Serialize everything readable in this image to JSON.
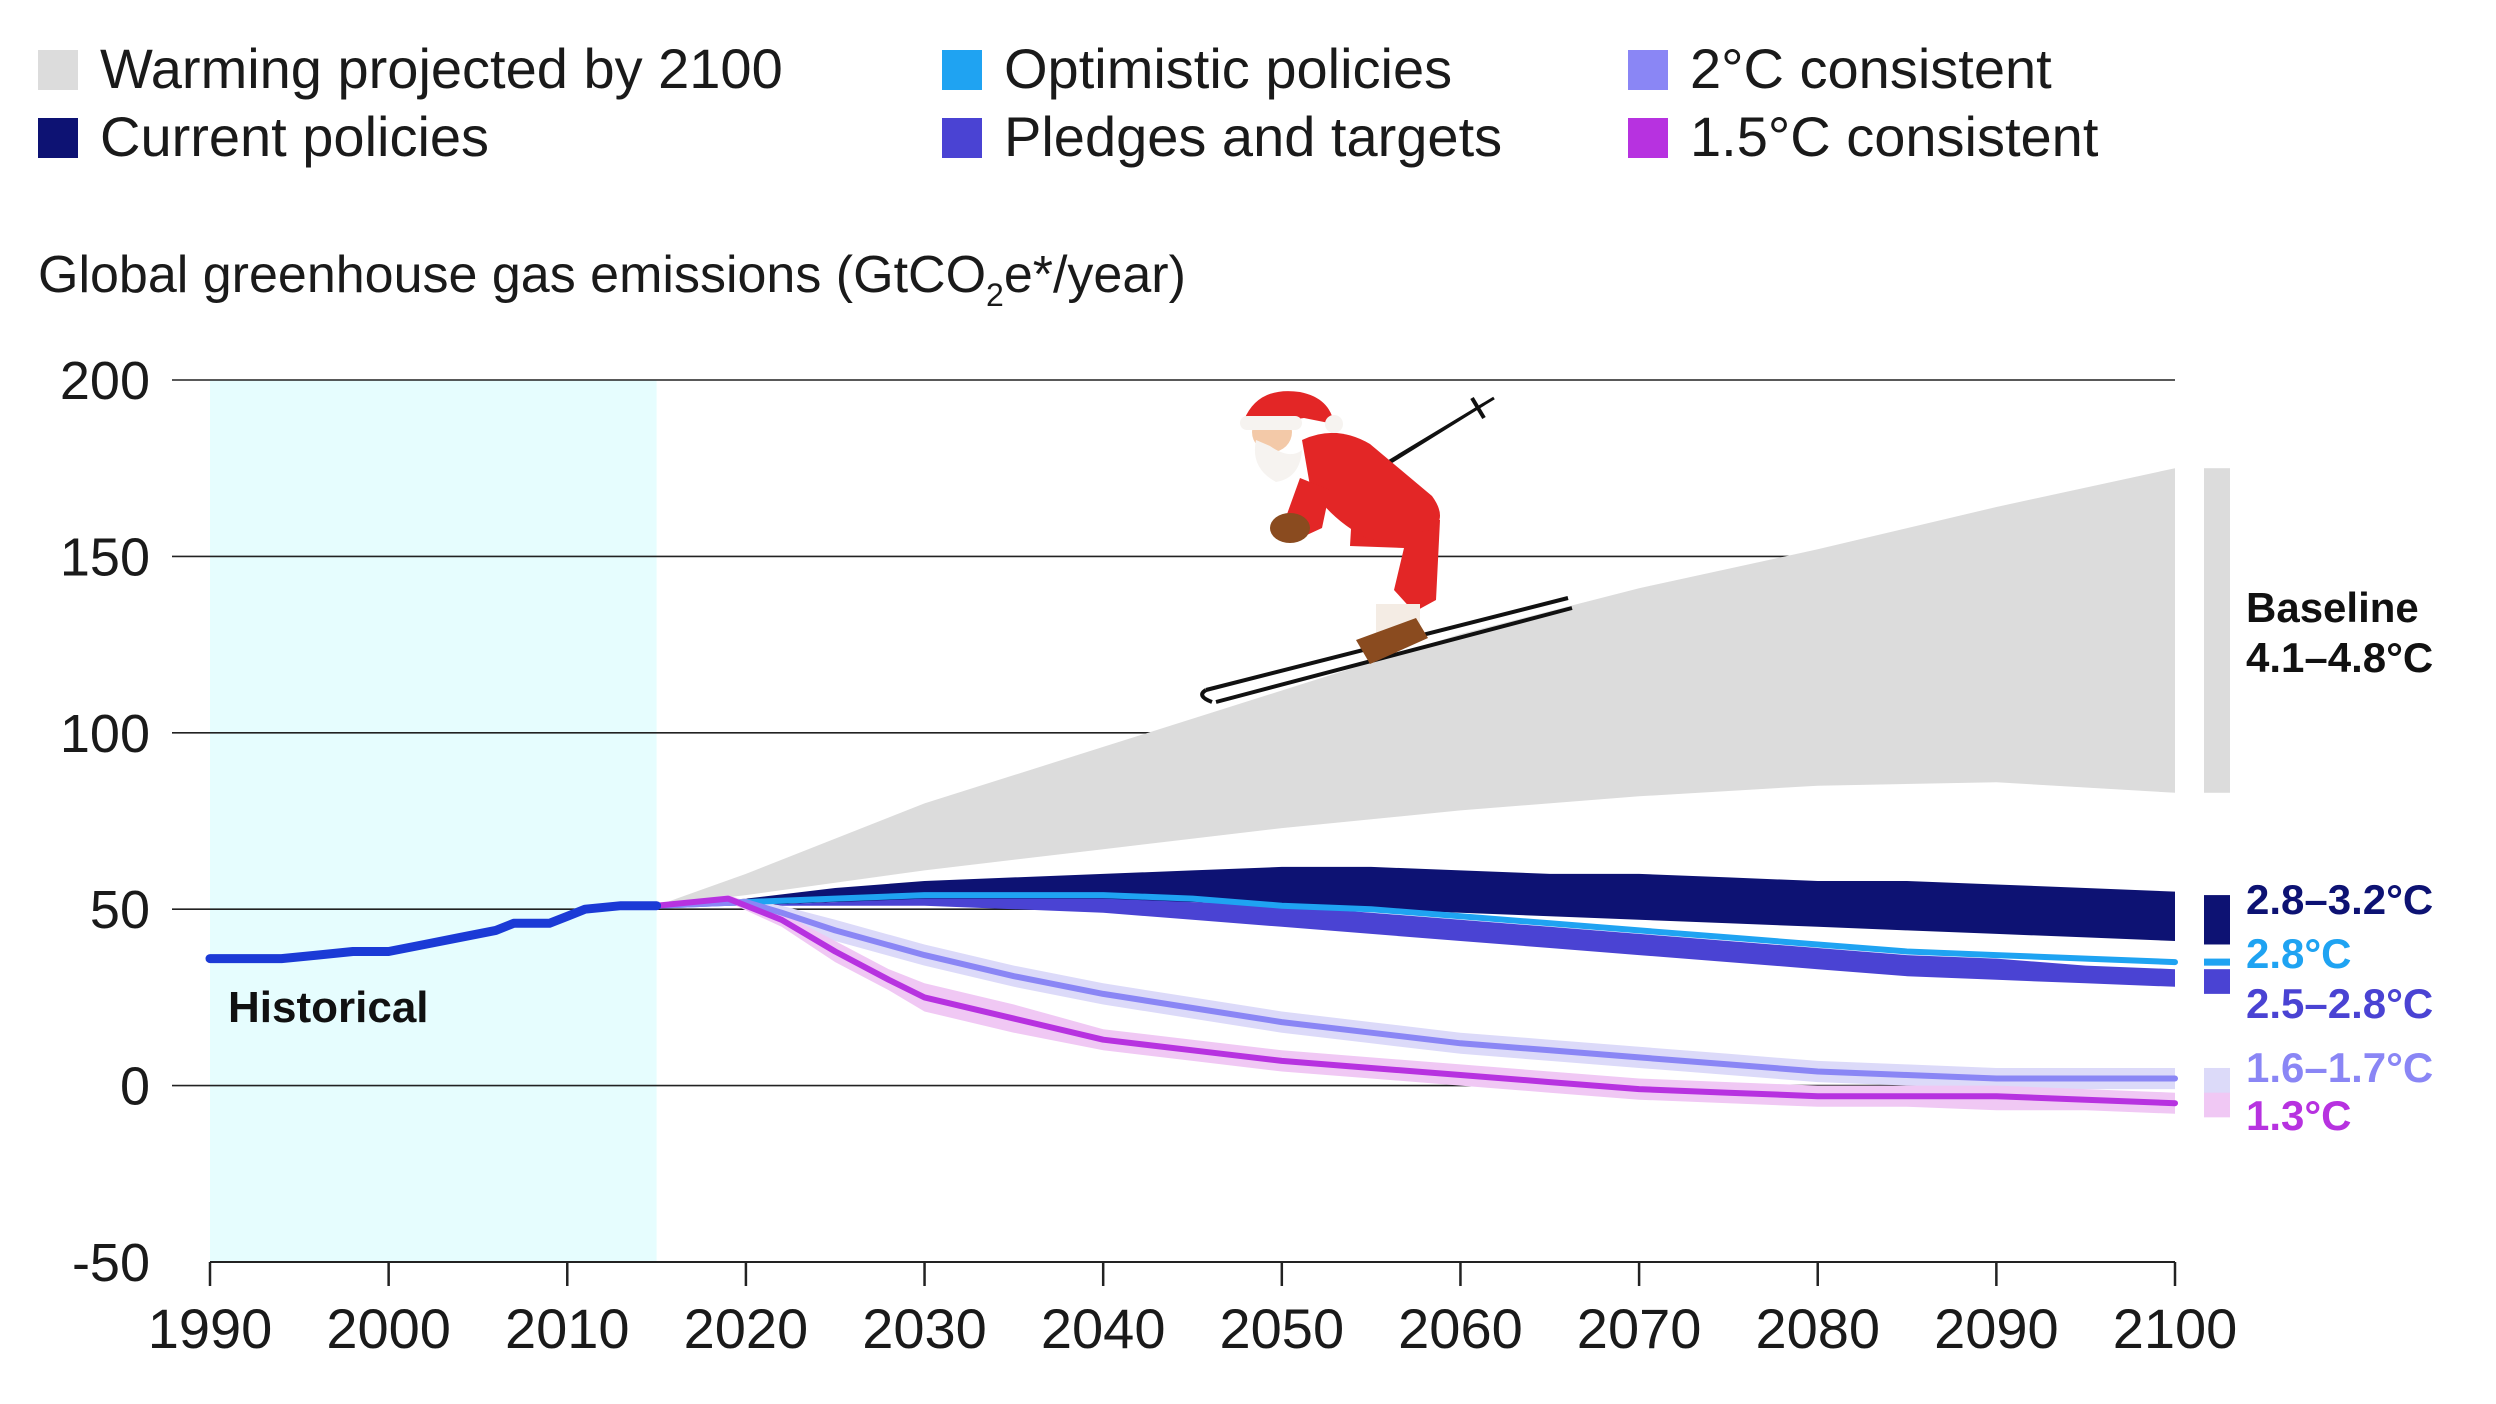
{
  "chart_data": {
    "type": "area",
    "title": "",
    "ylabel_main": "Global greenhouse gas emissions (GtCO",
    "ylabel_sub": "2",
    "ylabel_tail": "e*/year)",
    "xlim": [
      1990,
      2100
    ],
    "ylim": [
      -50,
      200
    ],
    "x_ticks": [
      1990,
      2000,
      2010,
      2020,
      2030,
      2040,
      2050,
      2060,
      2070,
      2080,
      2090,
      2100
    ],
    "x_tick_labels": [
      "1990",
      "2000",
      "2010",
      "2020",
      "2030",
      "2040",
      "2050",
      "2060",
      "2070",
      "2080",
      "2090",
      "2100"
    ],
    "y_ticks": [
      -50,
      0,
      50,
      100,
      150,
      200
    ],
    "y_tick_labels": [
      "-50",
      "0",
      "50",
      "100",
      "150",
      "200"
    ],
    "historical_range": [
      1990,
      2015
    ],
    "historical_label": "Historical",
    "legend": [
      {
        "label": "Warming projected by 2100",
        "color": "#dcdcdc"
      },
      {
        "label": "Current policies",
        "color": "#0d1273"
      },
      {
        "label": "Optimistic policies",
        "color": "#1fa3f2"
      },
      {
        "label": "Pledges and targets",
        "color": "#4a43d3"
      },
      {
        "label": "2°C consistent",
        "color": "#8a86f5"
      },
      {
        "label": "1.5°C consistent",
        "color": "#b732e0"
      }
    ],
    "series": [
      {
        "name": "Historical",
        "color": "#1b3ad6",
        "x": [
          1990,
          1994,
          1996,
          1998,
          2000,
          2002,
          2004,
          2006,
          2007,
          2009,
          2010,
          2011,
          2013,
          2015
        ],
        "y": [
          36,
          36,
          37,
          38,
          38,
          40,
          42,
          44,
          46,
          46,
          48,
          50,
          51,
          51
        ]
      },
      {
        "name": "Baseline",
        "color": "#dcdcdc",
        "x": [
          2015,
          2020,
          2030,
          2040,
          2050,
          2060,
          2070,
          2080,
          2090,
          2100
        ],
        "low": [
          51,
          54,
          61,
          67,
          73,
          78,
          82,
          85,
          86,
          83
        ],
        "high": [
          51,
          60,
          80,
          96,
          112,
          128,
          141,
          152,
          164,
          175
        ]
      },
      {
        "name": "Current policies",
        "color": "#0d1273",
        "x": [
          2015,
          2020,
          2025,
          2030,
          2035,
          2040,
          2045,
          2050,
          2055,
          2060,
          2065,
          2070,
          2075,
          2080,
          2085,
          2090,
          2095,
          2100
        ],
        "low": [
          51,
          51,
          52,
          52,
          52,
          52,
          52,
          51,
          50,
          49,
          48,
          47,
          46,
          45,
          44,
          43,
          42,
          41
        ],
        "high": [
          51,
          53,
          56,
          58,
          59,
          60,
          61,
          62,
          62,
          61,
          60,
          60,
          59,
          58,
          58,
          57,
          56,
          55
        ]
      },
      {
        "name": "Pledges and targets",
        "color": "#4a43d3",
        "x": [
          2015,
          2020,
          2025,
          2030,
          2035,
          2040,
          2045,
          2050,
          2055,
          2060,
          2065,
          2070,
          2075,
          2080,
          2085,
          2090,
          2095,
          2100
        ],
        "low": [
          51,
          51,
          51,
          51,
          50,
          49,
          47,
          45,
          43,
          41,
          39,
          37,
          35,
          33,
          31,
          30,
          29,
          28
        ],
        "high": [
          51,
          51,
          52,
          53,
          53,
          53,
          52,
          51,
          49,
          47,
          45,
          43,
          41,
          39,
          37,
          36,
          34,
          33
        ]
      },
      {
        "name": "Optimistic policies",
        "color": "#1fa3f2",
        "x": [
          2015,
          2020,
          2025,
          2030,
          2040,
          2045,
          2050,
          2055,
          2060,
          2065,
          2070,
          2075,
          2080,
          2085,
          2090,
          2095,
          2100
        ],
        "y": [
          51,
          52,
          53,
          54,
          54,
          53,
          51,
          50,
          48,
          46,
          44,
          42,
          40,
          38,
          37,
          36,
          35
        ]
      },
      {
        "name": "2°C consistent",
        "color": "#8a86f5",
        "x": [
          2015,
          2020,
          2022,
          2025,
          2030,
          2035,
          2040,
          2045,
          2050,
          2055,
          2060,
          2065,
          2070,
          2075,
          2080,
          2085,
          2090,
          2095,
          2100
        ],
        "y": [
          51,
          52,
          49,
          44,
          37,
          31,
          26,
          22,
          18,
          15,
          12,
          10,
          8,
          6,
          4,
          3,
          2,
          2,
          2
        ],
        "low": [
          51,
          51,
          47,
          41,
          34,
          28,
          23,
          19,
          15,
          12,
          9,
          7,
          5,
          3,
          1,
          0,
          -1,
          -1,
          -1
        ],
        "high": [
          51,
          53,
          51,
          47,
          40,
          34,
          29,
          25,
          21,
          18,
          15,
          13,
          11,
          9,
          7,
          6,
          5,
          5,
          5
        ]
      },
      {
        "name": "1.5°C consistent",
        "color": "#b732e0",
        "x": [
          2015,
          2019,
          2022,
          2025,
          2028,
          2030,
          2035,
          2040,
          2045,
          2050,
          2055,
          2060,
          2065,
          2070,
          2075,
          2080,
          2085,
          2090,
          2095,
          2100
        ],
        "y": [
          51,
          53,
          47,
          38,
          30,
          25,
          19,
          13,
          10,
          7,
          5,
          3,
          1,
          -1,
          -2,
          -3,
          -3,
          -3,
          -4,
          -5
        ],
        "low": [
          51,
          52,
          45,
          35,
          27,
          21,
          15,
          10,
          7,
          4,
          2,
          0,
          -2,
          -4,
          -5,
          -6,
          -6,
          -7,
          -7,
          -8
        ],
        "high": [
          51,
          54,
          49,
          41,
          33,
          29,
          23,
          16,
          13,
          10,
          8,
          6,
          4,
          2,
          1,
          0,
          0,
          0,
          -1,
          -2
        ]
      }
    ],
    "range_bars": [
      {
        "name": "Baseline",
        "low": 83,
        "high": 175,
        "color": "#dcdcdc",
        "label_line1": "Baseline",
        "label_line2": "4.1–4.8°C",
        "label_color": "#111111"
      },
      {
        "name": "Current policies",
        "low": 40,
        "high": 54,
        "color": "#0d1273",
        "label": "2.8–3.2°C",
        "label_color": "#0d1273"
      },
      {
        "name": "Optimistic policies",
        "low": 34,
        "high": 36,
        "color": "#1fa3f2",
        "label": "2.8°C",
        "label_color": "#1fa3f2"
      },
      {
        "name": "Pledges and targets",
        "low": 26,
        "high": 33,
        "color": "#4a43d3",
        "label": "2.5–2.8°C",
        "label_color": "#4a43d3"
      },
      {
        "name": "2°C consistent",
        "low": -3,
        "high": 5,
        "color": "#dcdaf9",
        "label": "1.6–1.7°C",
        "label_color": "#8a86f5"
      },
      {
        "name": "1.5°C consistent",
        "low": -9,
        "high": -2,
        "color": "#f0c8f4",
        "label": "1.3°C",
        "label_color": "#b732e0"
      }
    ],
    "grid": "horizontal",
    "legend_position": "top-left"
  },
  "decoration": {
    "figure": "santa-skier-illustration"
  }
}
